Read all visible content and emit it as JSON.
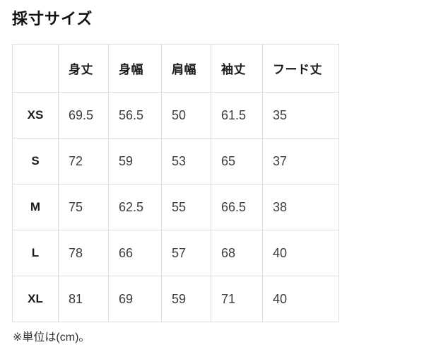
{
  "page": {
    "title": "採寸サイズ",
    "note": "※単位は(cm)。"
  },
  "table": {
    "corner": "",
    "columns": [
      "身丈",
      "身幅",
      "肩幅",
      "袖丈",
      "フード丈"
    ],
    "rows": [
      {
        "size": "XS",
        "values": [
          "69.5",
          "56.5",
          "50",
          "61.5",
          "35"
        ]
      },
      {
        "size": "S",
        "values": [
          "72",
          "59",
          "53",
          "65",
          "37"
        ]
      },
      {
        "size": "M",
        "values": [
          "75",
          "62.5",
          "55",
          "66.5",
          "38"
        ]
      },
      {
        "size": "L",
        "values": [
          "78",
          "66",
          "57",
          "68",
          "40"
        ]
      },
      {
        "size": "XL",
        "values": [
          "81",
          "69",
          "59",
          "71",
          "40"
        ]
      }
    ]
  }
}
